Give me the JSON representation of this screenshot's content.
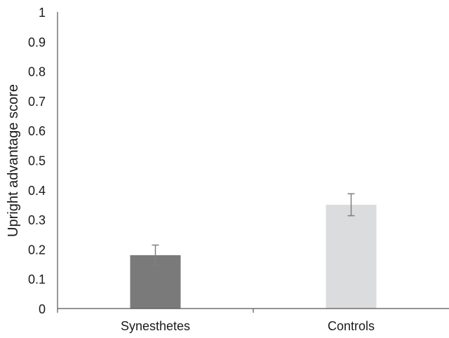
{
  "chart_data": {
    "type": "bar",
    "title": "",
    "xlabel": "",
    "ylabel": "Upright advantage score",
    "categories": [
      "Synesthetes",
      "Controls"
    ],
    "values": [
      0.18,
      0.35
    ],
    "error": [
      0.034,
      0.037
    ],
    "bar_colors": [
      "#7a7a7b",
      "#dbdcdd"
    ],
    "error_color": "#7f7f7f",
    "axis_color": "#555555",
    "ylim": [
      0,
      1
    ],
    "yticks": [
      0,
      0.1,
      0.2,
      0.3,
      0.4,
      0.5,
      0.6,
      0.7,
      0.8,
      0.9,
      1
    ],
    "ytick_labels": [
      "0",
      "0.1",
      "0.2",
      "0.3",
      "0.4",
      "0.5",
      "0.6",
      "0.7",
      "0.8",
      "0.9",
      "1"
    ],
    "grid": false,
    "legend": "none"
  }
}
